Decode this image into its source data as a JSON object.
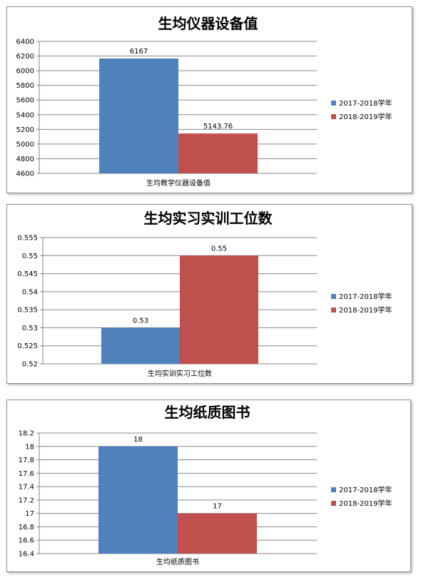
{
  "chart_data": [
    {
      "type": "bar",
      "title": "生均仪器设备值",
      "categories": [
        "生均教学仪器设备值"
      ],
      "series": [
        {
          "name": "2017-2018学年",
          "values": [
            6167
          ],
          "labels": [
            "6167"
          ]
        },
        {
          "name": "2018-2019学年",
          "values": [
            5143.76
          ],
          "labels": [
            "5143.76"
          ]
        }
      ],
      "ylim": [
        4600,
        6400
      ],
      "yticks": [
        "6400",
        "6200",
        "6000",
        "5800",
        "5600",
        "5400",
        "5200",
        "5000",
        "4800",
        "4600"
      ],
      "grid": true,
      "legend": "right"
    },
    {
      "type": "bar",
      "title": "生均实习实训工位数",
      "categories": [
        "生均实训实习工位数"
      ],
      "series": [
        {
          "name": "2017-2018学年",
          "values": [
            0.53
          ],
          "labels": [
            "0.53"
          ]
        },
        {
          "name": "2018-2019学年",
          "values": [
            0.55
          ],
          "labels": [
            "0.55"
          ]
        }
      ],
      "ylim": [
        0.52,
        0.555
      ],
      "yticks": [
        "0.555",
        "0.55",
        "0.545",
        "0.54",
        "0.535",
        "0.53",
        "0.525",
        "0.52"
      ],
      "grid": true,
      "legend": "right"
    },
    {
      "type": "bar",
      "title": "生均纸质图书",
      "categories": [
        "生均纸质图书"
      ],
      "series": [
        {
          "name": "2017-2018学年",
          "values": [
            18
          ],
          "labels": [
            "18"
          ]
        },
        {
          "name": "2018-2019学年",
          "values": [
            17
          ],
          "labels": [
            "17"
          ]
        }
      ],
      "ylim": [
        16.4,
        18.2
      ],
      "yticks": [
        "18.2",
        "18",
        "17.8",
        "17.6",
        "17.4",
        "17.2",
        "17",
        "16.8",
        "16.6",
        "16.4"
      ],
      "grid": true,
      "legend": "right"
    }
  ],
  "colors": {
    "series1": "#4f81bd",
    "series2": "#c0504d",
    "grid": "#868686",
    "axis": "#868686"
  }
}
